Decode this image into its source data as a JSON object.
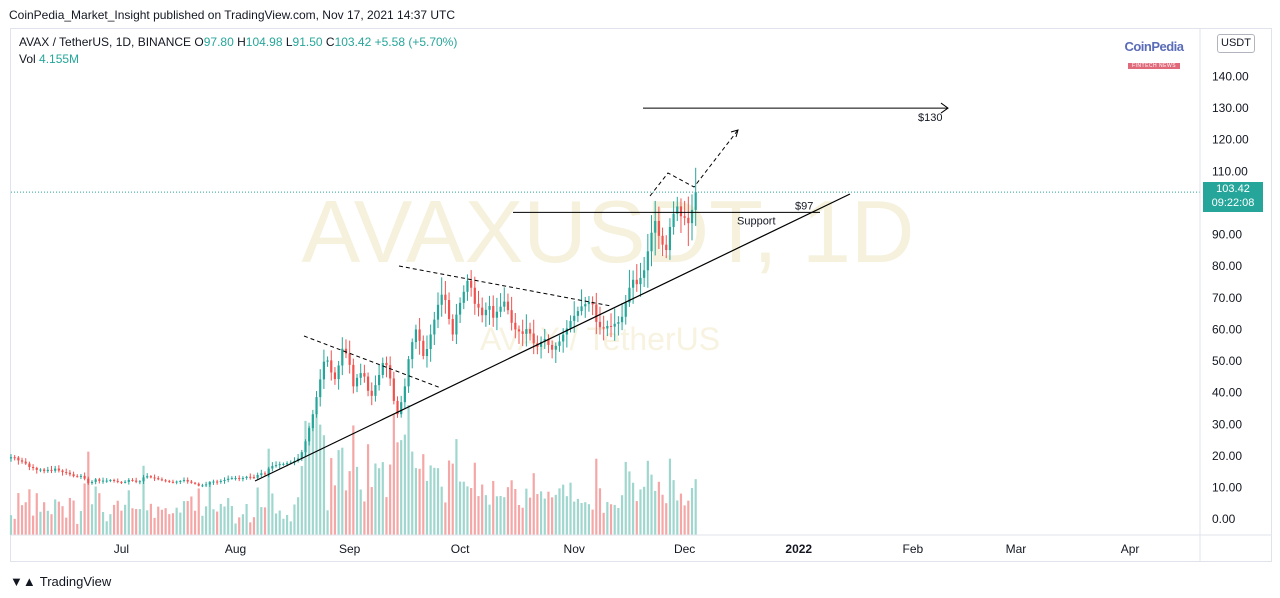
{
  "header": {
    "publisher_line": "CoinPedia_Market_Insight published on TradingView.com, Nov 17, 2021 14:37 UTC"
  },
  "legend": {
    "symbol": "AVAX / TetherUS, 1D, BINANCE",
    "open_label": "O",
    "open": "97.80",
    "high_label": "H",
    "high": "104.98",
    "low_label": "L",
    "low": "91.50",
    "close_label": "C",
    "close": "103.42",
    "change": "+5.58 (+5.70%)",
    "volume_label": "Vol",
    "volume": "4.155M"
  },
  "currency_button": "USDT",
  "watermark": {
    "main": "AVAXUSDT, 1D",
    "sub": "AVAX / TetherUS"
  },
  "logo": {
    "name": "CoinPedia",
    "tagline": "FINTECH NEWS"
  },
  "price_label": {
    "price": "103.42",
    "countdown": "09:22:08"
  },
  "footer": {
    "brand": "TradingView"
  },
  "colors": {
    "up": "#26a69a",
    "down": "#ef5350",
    "vol_up": "#9fd7cf",
    "vol_down": "#f4a7a6",
    "current_price_line": "#26a69a",
    "annotation": "#000000"
  },
  "chart_data": {
    "type": "candlestick",
    "series_name": "AVAX / TetherUS",
    "y_range": [
      -5,
      155
    ],
    "y_ticks": [
      0,
      10,
      20,
      30,
      40,
      50,
      60,
      70,
      80,
      90,
      100,
      110,
      120,
      130,
      140
    ],
    "y_tick_labels": [
      "0.00",
      "10.00",
      "20.00",
      "30.00",
      "40.00",
      "50.00",
      "60.00",
      "70.00",
      "80.00",
      "90.00",
      "100.00",
      "110.00",
      "120.00",
      "130.00",
      "140.00"
    ],
    "x_range": [
      "2021-06-01",
      "2022-04-20"
    ],
    "x_ticks": [
      {
        "date": "2021-07-01",
        "label": "Jul",
        "bold": false
      },
      {
        "date": "2021-08-01",
        "label": "Aug",
        "bold": false
      },
      {
        "date": "2021-09-01",
        "label": "Sep",
        "bold": false
      },
      {
        "date": "2021-10-01",
        "label": "Oct",
        "bold": false
      },
      {
        "date": "2021-11-01",
        "label": "Nov",
        "bold": false
      },
      {
        "date": "2021-12-01",
        "label": "Dec",
        "bold": false
      },
      {
        "date": "2022-01-01",
        "label": "2022",
        "bold": true
      },
      {
        "date": "2022-02-01",
        "label": "Feb",
        "bold": false
      },
      {
        "date": "2022-03-01",
        "label": "Mar",
        "bold": false
      },
      {
        "date": "2022-04-01",
        "label": "Apr",
        "bold": false
      }
    ],
    "current_price": 103.42,
    "daily_closes_start_date": "2021-06-01",
    "daily_closes": [
      19.6,
      19.5,
      18.6,
      18.2,
      17.6,
      16.5,
      16.2,
      15.6,
      15.7,
      15.2,
      15.6,
      15.3,
      16.0,
      15.4,
      14.9,
      14.7,
      14.2,
      13.6,
      13.5,
      13.7,
      12.8,
      11.4,
      11.8,
      12.6,
      12.1,
      12.2,
      12.2,
      12.4,
      12.1,
      11.8,
      11.6,
      11.8,
      12.4,
      12.2,
      11.8,
      12.0,
      13.2,
      13.6,
      13.2,
      13.0,
      12.6,
      12.3,
      12.1,
      11.8,
      11.6,
      11.9,
      12.1,
      12.4,
      11.9,
      11.5,
      11.2,
      10.6,
      10.7,
      11.0,
      11.7,
      11.9,
      11.8,
      12.1,
      12.4,
      12.8,
      13.0,
      13.0,
      12.9,
      13.0,
      13.4,
      13.3,
      13.1,
      14.0,
      14.5,
      14.2,
      16.0,
      16.8,
      17.1,
      17.4,
      17.5,
      17.7,
      17.9,
      18.4,
      19.2,
      21.2,
      24.6,
      28.8,
      33.2,
      38.6,
      44.2,
      49.8,
      50.2,
      46.4,
      44.3,
      48.6,
      53.9,
      52.4,
      48.8,
      42.0,
      44.7,
      46.2,
      45.1,
      40.6,
      39.0,
      42.4,
      45.6,
      49.4,
      48.7,
      44.5,
      37.4,
      33.2,
      37.0,
      42.0,
      50.6,
      56.0,
      60.0,
      56.4,
      51.6,
      53.8,
      58.4,
      63.1,
      67.8,
      71.0,
      69.3,
      63.3,
      58.4,
      64.7,
      68.4,
      71.9,
      75.4,
      73.2,
      68.1,
      66.9,
      64.5,
      66.2,
      67.4,
      63.7,
      65.6,
      67.2,
      68.8,
      66.1,
      62.1,
      60.0,
      59.4,
      58.6,
      60.1,
      58.7,
      55.6,
      54.5,
      56.1,
      57.0,
      55.1,
      53.6,
      54.8,
      56.2,
      58.4,
      60.3,
      62.7,
      64.3,
      65.8,
      67.3,
      68.0,
      68.7,
      67.9,
      62.4,
      60.7,
      60.3,
      61.1,
      60.9,
      61.8,
      62.3,
      64.0,
      68.5,
      73.2,
      75.7,
      74.3,
      76.3,
      78.7,
      84.7,
      90.6,
      94.3,
      89.6,
      86.8,
      85.1,
      92.4,
      96.6,
      98.9,
      95.8,
      95.3,
      93.6,
      97.8,
      103.4
    ],
    "annotations": [
      {
        "type": "target_line",
        "label": "$130",
        "value": 130
      },
      {
        "type": "support_line",
        "label": "$97",
        "value": 97
      },
      {
        "type": "text",
        "label": "Support"
      },
      {
        "type": "ascending_trendline"
      },
      {
        "type": "descending_trendline_dashed",
        "count": 2
      },
      {
        "type": "projected_path_dashed"
      }
    ]
  }
}
